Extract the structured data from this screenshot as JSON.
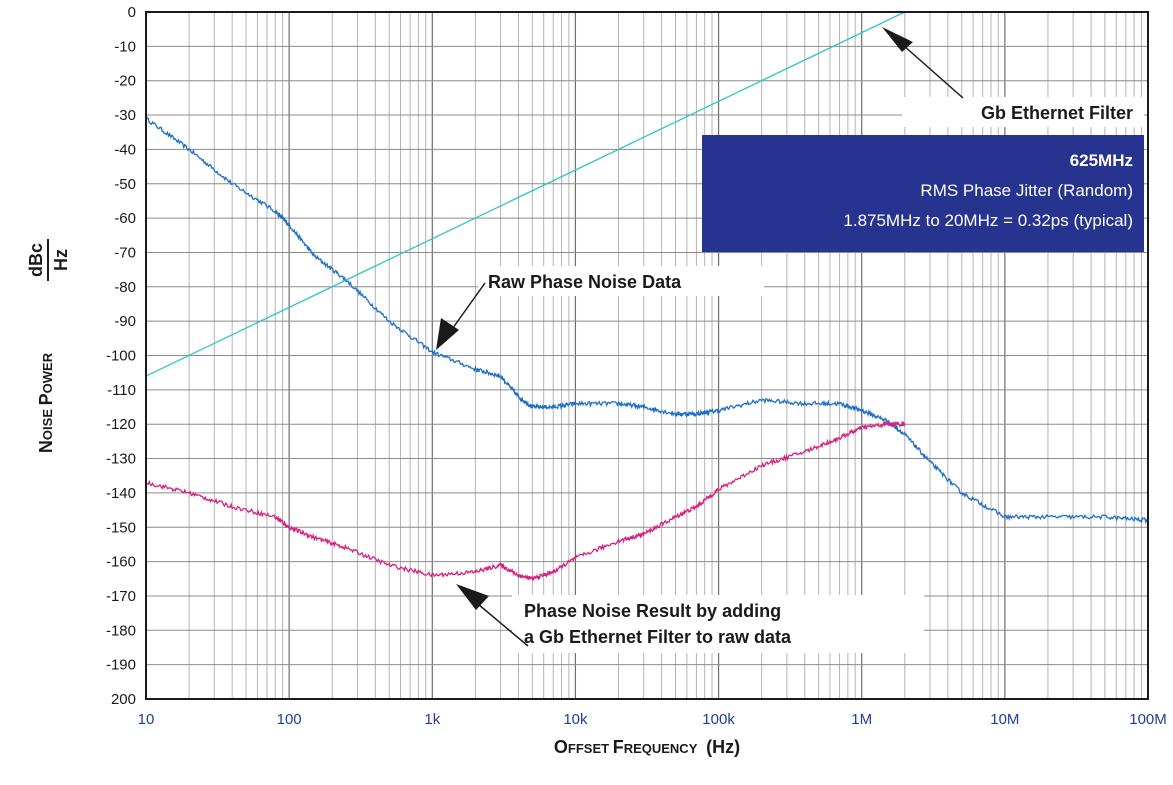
{
  "chart_data": {
    "type": "line",
    "x_scale": "log",
    "grid": true,
    "xlabel": {
      "prefix": "Offset Frequency",
      "unit": "(Hz)"
    },
    "ylabel": {
      "prefix": "Noise Power",
      "unit_num": "dBc",
      "unit_den": "Hz"
    },
    "x_ticks": [
      "10",
      "100",
      "1k",
      "10k",
      "100k",
      "1M",
      "10M",
      "100M"
    ],
    "y_ticks": [
      "0",
      "-10",
      "-20",
      "-30",
      "-40",
      "-50",
      "-60",
      "-70",
      "-80",
      "-90",
      "-100",
      "-110",
      "-120",
      "-130",
      "-140",
      "-150",
      "-160",
      "-170",
      "-180",
      "-190",
      "200"
    ],
    "xlim": [
      10,
      100000000
    ],
    "ylim": [
      -200,
      0
    ],
    "series": [
      {
        "name": "Gb Ethernet Filter",
        "color": "#2ec4c8",
        "x": [
          10,
          2000000
        ],
        "y": [
          -106,
          0
        ]
      },
      {
        "name": "Raw Phase Noise Data",
        "color": "#1f6fc9",
        "x": [
          10,
          20,
          40,
          80,
          100,
          150,
          250,
          500,
          1000,
          2000,
          3000,
          4000,
          5000,
          7000,
          10000,
          20000,
          30000,
          50000,
          70000,
          100000,
          200000,
          400000,
          700000,
          1000000,
          1500000,
          2000000,
          3000000,
          5000000,
          10000000,
          20000000,
          50000000,
          100000000
        ],
        "y": [
          -31,
          -40,
          -50,
          -58,
          -62,
          -71,
          -78,
          -90,
          -99,
          -104,
          -106,
          -112,
          -115,
          -115,
          -114,
          -114,
          -115,
          -117,
          -117,
          -116,
          -113,
          -114,
          -114,
          -116,
          -119,
          -123,
          -131,
          -140,
          -147,
          -147,
          -147,
          -148
        ]
      },
      {
        "name": "Phase Noise Result by adding a Gb Ethernet Filter to raw data",
        "color": "#d4237f",
        "x": [
          10,
          20,
          40,
          80,
          100,
          150,
          250,
          500,
          1000,
          2000,
          3000,
          4000,
          5000,
          7000,
          10000,
          20000,
          30000,
          50000,
          70000,
          100000,
          200000,
          400000,
          700000,
          1000000,
          1500000,
          2000000
        ],
        "y": [
          -137,
          -140,
          -144,
          -147,
          -150,
          -153,
          -156,
          -161,
          -164,
          -163,
          -161,
          -164,
          -165,
          -163,
          -159,
          -154,
          -152,
          -147,
          -144,
          -139,
          -132,
          -128,
          -124,
          -121,
          -120,
          -120
        ]
      }
    ],
    "annotations": [
      {
        "id": "gb",
        "lines": [
          "Gb Ethernet Filter"
        ]
      },
      {
        "id": "raw",
        "lines": [
          "Raw Phase Noise Data"
        ]
      },
      {
        "id": "result",
        "lines": [
          "Phase Noise Result by adding",
          "a Gb Ethernet Filter to raw data"
        ]
      }
    ],
    "info_box": {
      "title": "625MHz",
      "line1": "RMS Phase Jitter (Random)",
      "line2": "1.875MHz to 20MHz = 0.32ps (typical)",
      "color": "#26338f"
    }
  }
}
